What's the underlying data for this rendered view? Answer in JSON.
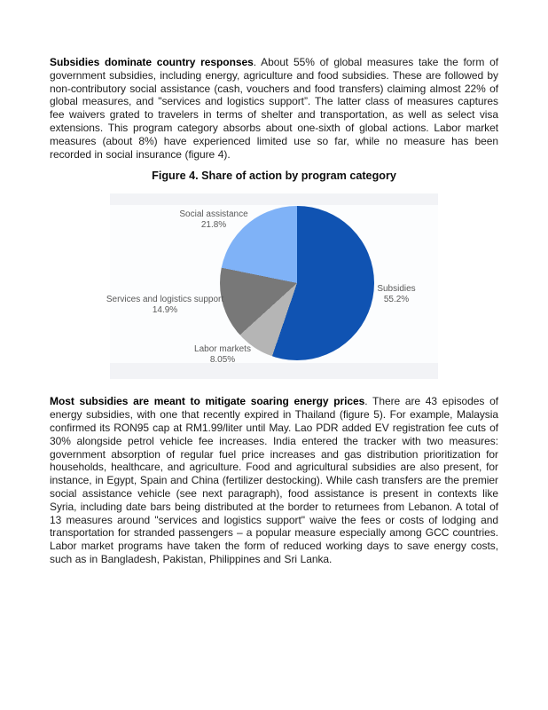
{
  "document": {
    "paragraphs": [
      {
        "bold": "Subsidies dominate country responses",
        "rest": ". About 55% of global measures take the form of government subsidies, including energy, agriculture and food subsidies. These are followed by non-contributory social assistance (cash, vouchers and food transfers) claiming almost 22% of global measures, and \"services and logistics support”. The latter class of measures captures fee waivers grated to travelers in terms of shelter and transportation, as well as select visa extensions. This program category absorbs about one-sixth of global actions. Labor market measures (about 8%) have experienced limited use so far, while no measure has been recorded in social insurance (figure 4)."
      },
      {
        "bold": "Most subsidies are meant to mitigate soaring energy prices",
        "rest": ". There are 43 episodes of energy subsidies, with one that recently expired in Thailand (figure 5). For example, Malaysia confirmed its RON95 cap at RM1.99/liter until May. Lao PDR added EV registration fee cuts of 30% alongside petrol vehicle fee increases. India entered the tracker with two measures: government absorption of regular fuel price increases and gas distribution prioritization for households, healthcare, and agriculture. Food and agricultural subsidies are also present, for instance, in Egypt, Spain and China (fertilizer destocking). While cash transfers are the premier social assistance vehicle (see next paragraph), food assistance is present in contexts like Syria, including date bars being distributed at the border to returnees from Lebanon. A total of 13 measures around \"services and logistics support\" waive the fees or costs of lodging and transportation for stranded passengers – a popular measure especially among GCC countries. Labor market programs have taken the form of reduced working days to save energy costs, such as in Bangladesh, Pakistan, Philippines and Sri Lanka."
      }
    ],
    "figure_caption": "Figure 4. Share of action by program category"
  },
  "chart_data": {
    "type": "pie",
    "title": "Figure 4. Share of action by program category",
    "start_angle_deg": 0,
    "direction": "clockwise",
    "legend_position": "none",
    "labels_style": "outside, category name over percentage",
    "panel_background": "#fcfdfe",
    "panel_band_color": "#f2f3f6",
    "label_text_color": "#595959",
    "slices": [
      {
        "label": "Subsidies",
        "value": 55.2,
        "display": "55.2%",
        "color": "#1053b2"
      },
      {
        "label": "Labor markets",
        "value": 8.05,
        "display": "8.05%",
        "color": "#b5b5b5"
      },
      {
        "label": "Services and logistics support",
        "value": 14.9,
        "display": "14.9%",
        "color": "#787878"
      },
      {
        "label": "Social assistance",
        "value": 21.8,
        "display": "21.8%",
        "color": "#7fb2f7"
      }
    ]
  }
}
